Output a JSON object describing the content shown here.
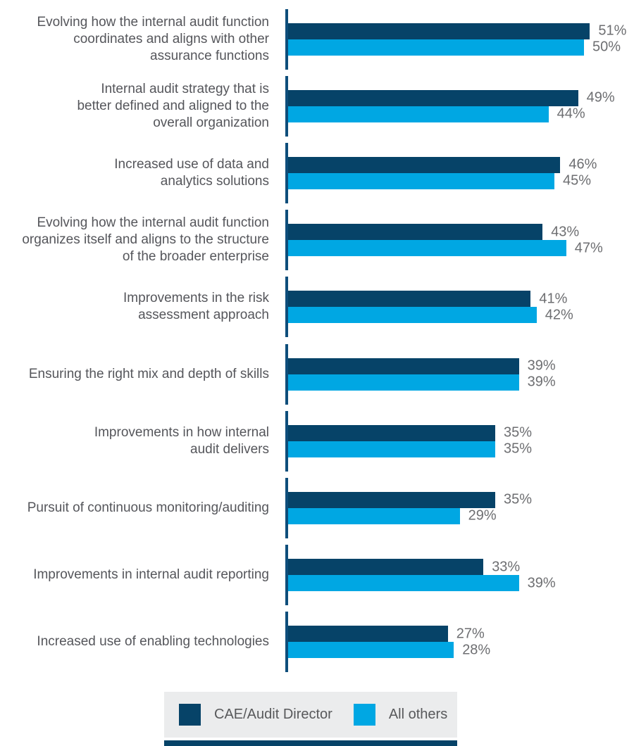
{
  "chart_data": {
    "type": "bar",
    "orientation": "horizontal",
    "unit": "%",
    "title": "",
    "xlabel": "",
    "ylabel": "",
    "xlim": [
      0,
      55
    ],
    "grid": false,
    "legend_position": "bottom",
    "value_labels_shown": true,
    "categories": [
      "Evolving how the internal audit function coordinates and aligns with other assurance functions",
      "Internal audit strategy that is better defined and aligned to the overall organization",
      "Increased use of data and analytics solutions",
      "Evolving how the internal audit function organizes itself and aligns to the structure of the broader enterprise",
      "Improvements in the risk assessment approach",
      "Ensuring the right mix and depth of skills",
      "Improvements in how internal audit delivers",
      "Pursuit of continuous monitoring/auditing",
      "Improvements in internal audit reporting",
      "Increased use of enabling technologies"
    ],
    "category_lines": [
      [
        "Evolving how the internal audit function",
        "coordinates and aligns with other",
        "assurance functions"
      ],
      [
        "Internal audit strategy that is",
        "better defined and aligned to the",
        "overall organization"
      ],
      [
        "Increased use of data and",
        "analytics solutions"
      ],
      [
        "Evolving how the internal audit function",
        "organizes itself and aligns to the structure",
        "of the broader enterprise"
      ],
      [
        "Improvements in the risk",
        "assessment approach"
      ],
      [
        "Ensuring the right mix and depth of skills"
      ],
      [
        "Improvements in how internal",
        "audit delivers"
      ],
      [
        "Pursuit of continuous monitoring/auditing"
      ],
      [
        "Improvements in internal audit reporting"
      ],
      [
        "Increased use of enabling technologies"
      ]
    ],
    "series": [
      {
        "name": "CAE/Audit Director",
        "color": "#064368",
        "values": [
          51,
          49,
          46,
          43,
          41,
          39,
          35,
          35,
          33,
          27
        ]
      },
      {
        "name": "All others",
        "color": "#00a7e3",
        "values": [
          50,
          44,
          45,
          47,
          42,
          39,
          35,
          29,
          39,
          28
        ]
      }
    ]
  },
  "legend": {
    "items": [
      {
        "label": "CAE/Audit Director",
        "color": "#064368"
      },
      {
        "label": "All others",
        "color": "#00a7e3"
      }
    ]
  },
  "colors": {
    "bar_dark": "#064368",
    "bar_light": "#00a7e3",
    "axis": "#0e4e7b",
    "category_text": "#55565b",
    "value_text": "#6d6e71",
    "legend_background": "#ebeced",
    "background": "#ffffff"
  }
}
